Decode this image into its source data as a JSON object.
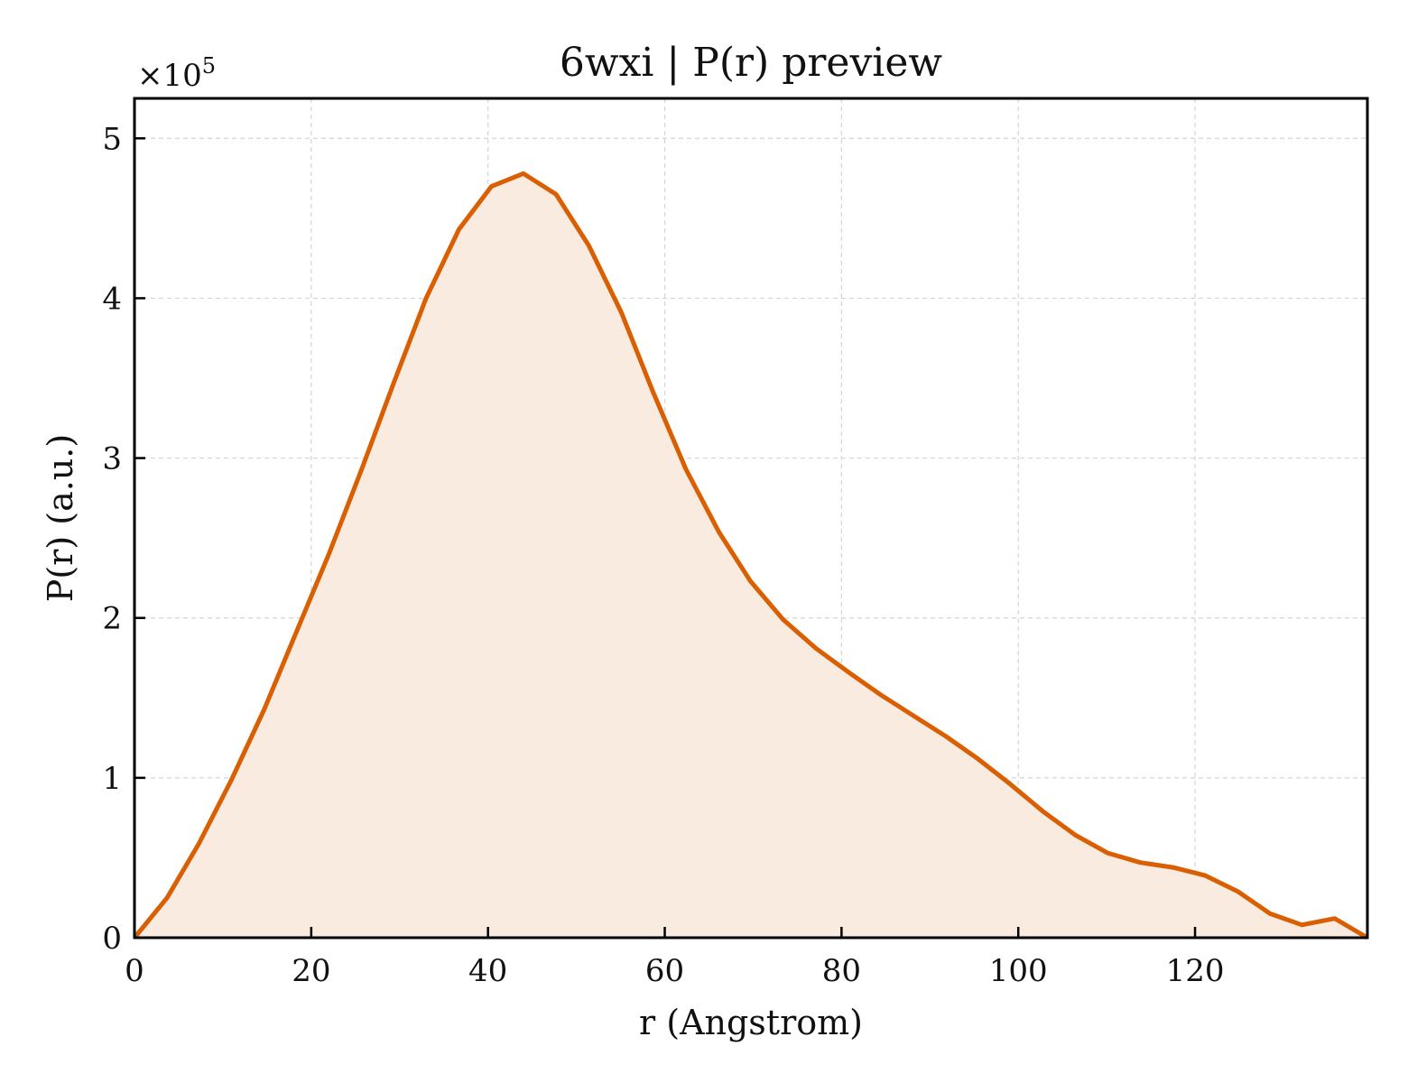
{
  "chart_data": {
    "type": "area",
    "title": "6wxi | P(r) preview",
    "xlabel": "r (Angstrom)",
    "ylabel": "P(r) (a.u.)",
    "y_multiplier": {
      "base": "×10",
      "exponent": "5"
    },
    "xlim": [
      0,
      139.5
    ],
    "ylim": [
      0,
      5.25
    ],
    "x_ticks": [
      0,
      20,
      40,
      60,
      80,
      100,
      120
    ],
    "y_ticks": [
      0,
      1,
      2,
      3,
      4,
      5
    ],
    "grid": true,
    "line_color": "#d95f02",
    "fill_color": "#f9ebe0",
    "series": [
      {
        "x": [
          0,
          3.7,
          7.3,
          11.0,
          14.7,
          18.3,
          22.0,
          25.7,
          29.4,
          33.0,
          36.7,
          40.4,
          44.0,
          47.7,
          51.4,
          55.1,
          58.7,
          62.4,
          66.1,
          69.7,
          73.4,
          77.1,
          80.8,
          84.4,
          88.1,
          91.8,
          95.4,
          99.1,
          102.8,
          106.5,
          110.1,
          113.8,
          117.5,
          121.1,
          124.8,
          128.5,
          132.1,
          135.8,
          139.5
        ],
        "y": [
          0.0,
          0.25,
          0.59,
          0.99,
          1.43,
          1.91,
          2.4,
          2.93,
          3.48,
          4.0,
          4.43,
          4.7,
          4.78,
          4.65,
          4.33,
          3.91,
          3.41,
          2.93,
          2.54,
          2.23,
          1.99,
          1.81,
          1.66,
          1.52,
          1.39,
          1.26,
          1.12,
          0.96,
          0.79,
          0.64,
          0.53,
          0.47,
          0.44,
          0.39,
          0.29,
          0.15,
          0.08,
          0.12,
          0.0
        ]
      }
    ]
  }
}
